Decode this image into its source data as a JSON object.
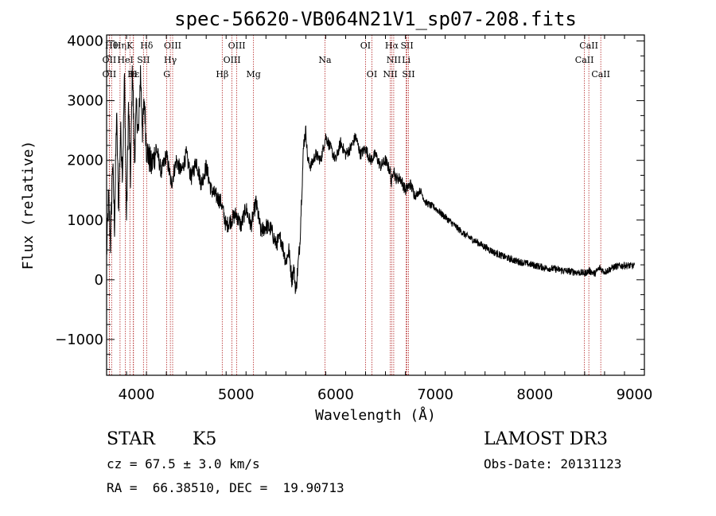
{
  "chart_data": {
    "type": "line",
    "title": "spec-56620-VB064N21V1_sp07-208.fits",
    "xlabel": "Wavelength (Å)",
    "ylabel": "Flux (relative)",
    "xlim": [
      3700,
      9100
    ],
    "ylim": [
      -1600,
      4100
    ],
    "xticks": [
      4000,
      5000,
      6000,
      7000,
      8000,
      9000
    ],
    "yticks": [
      -1000,
      0,
      1000,
      2000,
      3000,
      4000
    ],
    "grid": false,
    "line_color": "#000000",
    "marker_color": "#b22222",
    "spectrum": {
      "x": [
        3700,
        3720,
        3740,
        3760,
        3780,
        3800,
        3820,
        3840,
        3860,
        3880,
        3900,
        3920,
        3940,
        3960,
        3980,
        4000,
        4020,
        4040,
        4060,
        4080,
        4100,
        4150,
        4200,
        4250,
        4300,
        4350,
        4400,
        4450,
        4500,
        4550,
        4600,
        4650,
        4700,
        4750,
        4800,
        4850,
        4900,
        4950,
        5000,
        5050,
        5100,
        5150,
        5200,
        5250,
        5300,
        5350,
        5400,
        5450,
        5500,
        5530,
        5560,
        5580,
        5600,
        5620,
        5640,
        5660,
        5680,
        5700,
        5720,
        5750,
        5800,
        5850,
        5900,
        5950,
        6000,
        6050,
        6100,
        6150,
        6200,
        6250,
        6300,
        6350,
        6400,
        6450,
        6500,
        6550,
        6560,
        6580,
        6600,
        6650,
        6700,
        6750,
        6800,
        6850,
        6900,
        6950,
        7000,
        7100,
        7200,
        7300,
        7400,
        7500,
        7600,
        7700,
        7800,
        7900,
        8000,
        8100,
        8200,
        8300,
        8400,
        8450,
        8500,
        8550,
        8600,
        8650,
        8700,
        8800,
        8900,
        9000
      ],
      "y": [
        400,
        1400,
        600,
        2000,
        900,
        2800,
        1200,
        2500,
        1800,
        3400,
        1000,
        2900,
        1700,
        3600,
        2000,
        2900,
        2400,
        3500,
        2500,
        3000,
        2200,
        1900,
        2200,
        1800,
        2100,
        1600,
        2000,
        1800,
        2100,
        1700,
        2000,
        1600,
        1900,
        1500,
        1400,
        1300,
        900,
        1000,
        1100,
        900,
        1200,
        900,
        1300,
        800,
        900,
        850,
        600,
        700,
        300,
        500,
        0,
        200,
        -200,
        200,
        600,
        1500,
        2300,
        2500,
        2000,
        1900,
        2100,
        2000,
        2400,
        2200,
        2000,
        2300,
        2100,
        2200,
        2400,
        2100,
        2200,
        2000,
        2100,
        1900,
        2000,
        1800,
        1600,
        1900,
        1700,
        1700,
        1500,
        1600,
        1400,
        1500,
        1300,
        1250,
        1200,
        1050,
        900,
        750,
        650,
        550,
        450,
        380,
        320,
        280,
        240,
        200,
        180,
        150,
        130,
        120,
        110,
        150,
        100,
        200,
        130,
        220,
        240,
        230
      ],
      "noise": 220
    },
    "lines": [
      {
        "label": "Hθ",
        "x": 3750,
        "row": 1
      },
      {
        "label": "Hη",
        "x": 3835,
        "row": 1
      },
      {
        "label": "K",
        "x": 3934,
        "row": 1
      },
      {
        "label": "Hδ",
        "x": 4102,
        "row": 1
      },
      {
        "label": "OIII",
        "x": 4363,
        "row": 1
      },
      {
        "label": "OIII",
        "x": 5007,
        "row": 1
      },
      {
        "label": "OI",
        "x": 6300,
        "row": 1
      },
      {
        "label": "Hα",
        "x": 6563,
        "row": 1
      },
      {
        "label": "SII",
        "x": 6716,
        "row": 1
      },
      {
        "label": "CaII",
        "x": 8542,
        "row": 1
      },
      {
        "label": "OII",
        "x": 3727,
        "row": 2
      },
      {
        "label": "HeI",
        "x": 3889,
        "row": 2
      },
      {
        "label": "SII",
        "x": 4070,
        "row": 2
      },
      {
        "label": "Hγ",
        "x": 4340,
        "row": 2
      },
      {
        "label": "OIII",
        "x": 4959,
        "row": 2
      },
      {
        "label": "Na",
        "x": 5893,
        "row": 2
      },
      {
        "label": "NII",
        "x": 6583,
        "row": 2
      },
      {
        "label": "Li",
        "x": 6708,
        "row": 2
      },
      {
        "label": "CaII",
        "x": 8498,
        "row": 2
      },
      {
        "label": "OII",
        "x": 3727,
        "row": 3
      },
      {
        "label": "Hε",
        "x": 3970,
        "row": 3
      },
      {
        "label": "H",
        "x": 3968,
        "row": 3
      },
      {
        "label": "G",
        "x": 4304,
        "row": 3
      },
      {
        "label": "Hβ",
        "x": 4861,
        "row": 3
      },
      {
        "label": "Mg",
        "x": 5175,
        "row": 3
      },
      {
        "label": "OI",
        "x": 6364,
        "row": 3
      },
      {
        "label": "NII",
        "x": 6548,
        "row": 3
      },
      {
        "label": "SII",
        "x": 6731,
        "row": 3
      },
      {
        "label": "CaII",
        "x": 8662,
        "row": 3
      }
    ]
  },
  "info": {
    "object_type": "STAR",
    "subclass": "K5",
    "survey": "LAMOST DR3",
    "redshift": "cz = 67.5 ± 3.0 km/s",
    "obs_date": "Obs-Date: 20131123",
    "coords": "RA =  66.38510, DEC =  19.90713"
  }
}
